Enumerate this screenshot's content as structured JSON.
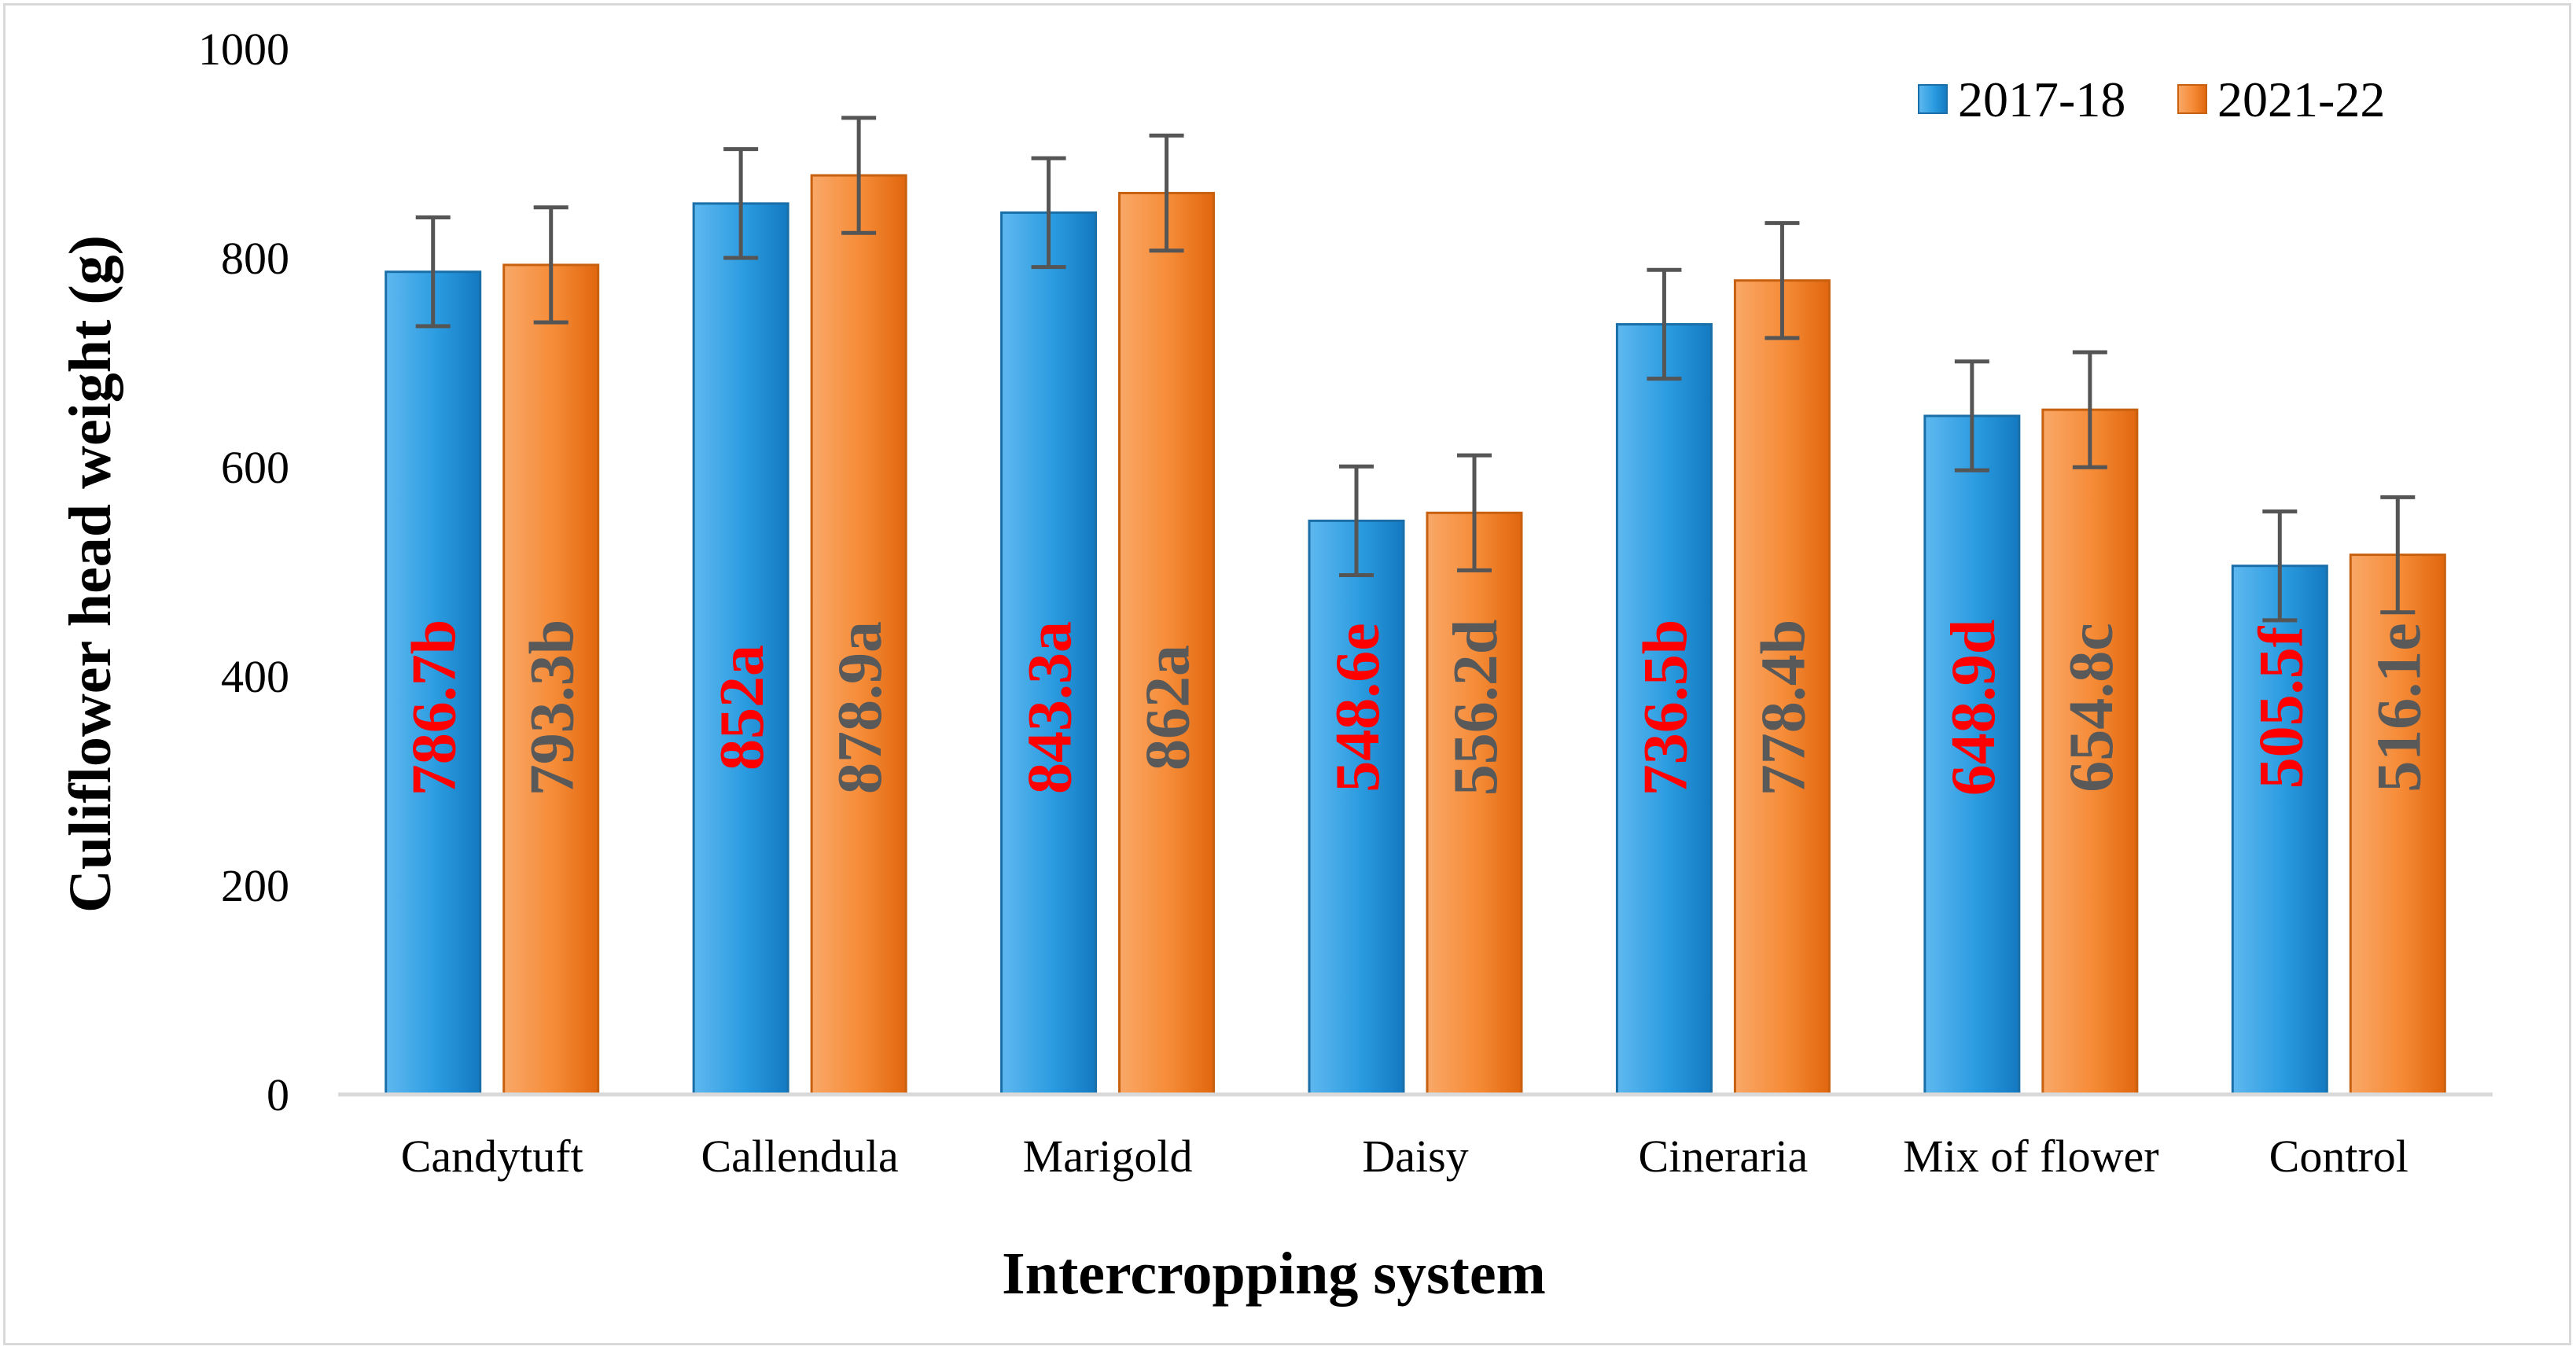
{
  "chart_data": {
    "type": "bar",
    "title": "",
    "xlabel": "Intercropping system",
    "ylabel": "Culiflower head weight (g)",
    "ylim": [
      0,
      1000
    ],
    "yticks": [
      0,
      200,
      400,
      600,
      800,
      1000
    ],
    "grid": false,
    "legend_position": "top-right",
    "categories": [
      "Candytuft",
      "Callendula",
      "Marigold",
      "Daisy",
      "Cineraria",
      "Mix of flower",
      "Control"
    ],
    "series": [
      {
        "name": "2017-18",
        "color": "#1f8fd6",
        "label_color": "#ff0000",
        "values": [
          786.7,
          852,
          843.3,
          548.6,
          736.5,
          648.9,
          505.5
        ],
        "labels": [
          "786.7b",
          "852a",
          "843.3a",
          "548.6e",
          "736.5b",
          "648.9d",
          "505.5f"
        ],
        "error": [
          52,
          52,
          52,
          52,
          52,
          52,
          52
        ]
      },
      {
        "name": "2021-22",
        "color": "#f07d1e",
        "label_color": "#595959",
        "values": [
          793.3,
          878.9,
          862,
          556.2,
          778.4,
          654.8,
          516.1
        ],
        "labels": [
          "793.3b",
          "878.9a",
          "862a",
          "556.2d",
          "778.4b",
          "654.8c",
          "516.1e"
        ],
        "error": [
          55,
          55,
          55,
          55,
          55,
          55,
          55
        ]
      }
    ]
  }
}
